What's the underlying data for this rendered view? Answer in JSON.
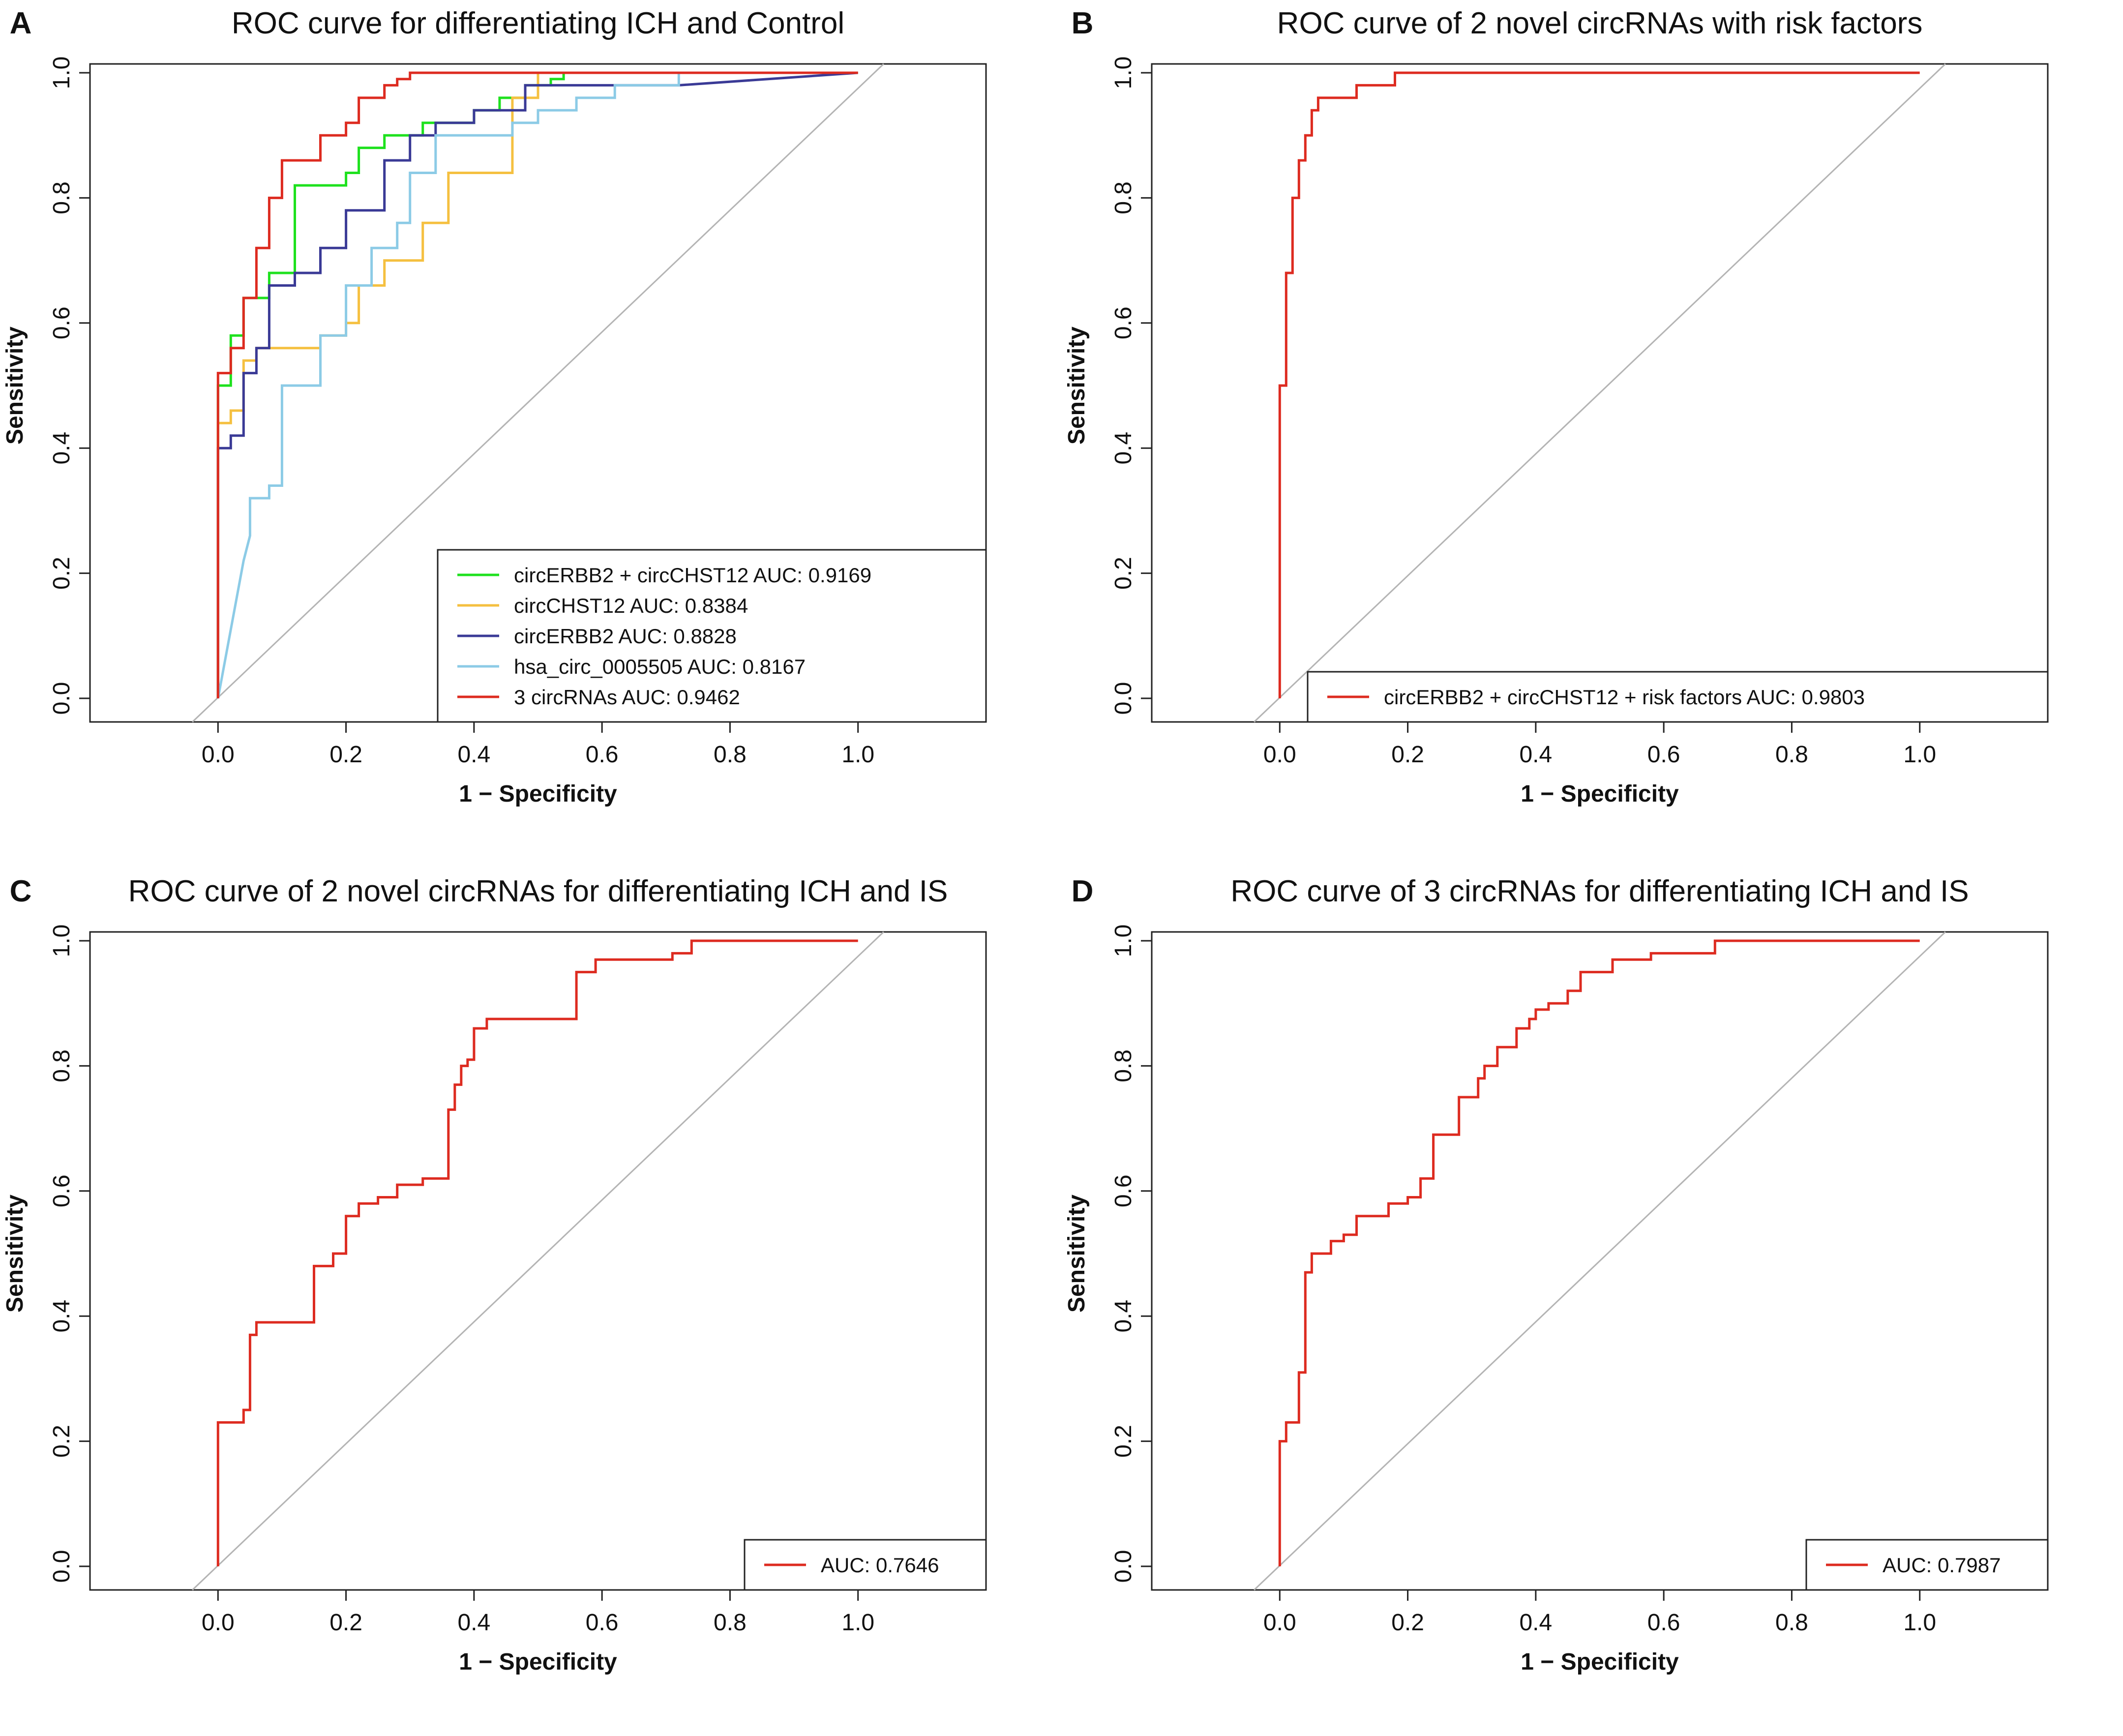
{
  "chart_data": [
    {
      "type": "line",
      "panel_label": "A",
      "title": "ROC curve for differentiating ICH and Control",
      "xlabel": "1 − Specificity",
      "ylabel": "Sensitivity",
      "xlim": [
        -0.2,
        1.2
      ],
      "ylim": [
        0,
        1
      ],
      "xticks": [
        "0.0",
        "0.2",
        "0.4",
        "0.6",
        "0.8",
        "1.0"
      ],
      "yticks": [
        "0.0",
        "0.2",
        "0.4",
        "0.6",
        "0.8",
        "1.0"
      ],
      "legend_position": "bottom-right",
      "diagonal_color": "#b4b4b4",
      "series": [
        {
          "name": "circERBB2 + circCHST12  AUC: 0.9169",
          "color": "#1ee11e",
          "x": [
            0,
            0,
            0.02,
            0.02,
            0.04,
            0.04,
            0.08,
            0.08,
            0.12,
            0.12,
            0.2,
            0.2,
            0.22,
            0.22,
            0.26,
            0.26,
            0.32,
            0.32,
            0.4,
            0.4,
            0.44,
            0.44,
            0.48,
            0.48,
            0.52,
            0.52,
            0.54,
            0.54,
            1.0
          ],
          "y": [
            0,
            0.5,
            0.5,
            0.58,
            0.58,
            0.64,
            0.64,
            0.68,
            0.68,
            0.82,
            0.82,
            0.84,
            0.84,
            0.88,
            0.88,
            0.9,
            0.9,
            0.92,
            0.92,
            0.94,
            0.94,
            0.96,
            0.96,
            0.98,
            0.98,
            0.99,
            0.99,
            1.0,
            1.0
          ]
        },
        {
          "name": "circCHST12  AUC: 0.8384",
          "color": "#f5c040",
          "x": [
            0,
            0,
            0.02,
            0.02,
            0.04,
            0.04,
            0.06,
            0.06,
            0.16,
            0.16,
            0.2,
            0.2,
            0.22,
            0.22,
            0.26,
            0.26,
            0.32,
            0.32,
            0.36,
            0.36,
            0.46,
            0.46,
            0.5,
            0.5,
            1.0
          ],
          "y": [
            0,
            0.44,
            0.44,
            0.46,
            0.46,
            0.54,
            0.54,
            0.56,
            0.56,
            0.58,
            0.58,
            0.6,
            0.6,
            0.66,
            0.66,
            0.7,
            0.7,
            0.76,
            0.76,
            0.84,
            0.84,
            0.96,
            0.96,
            1.0,
            1.0
          ]
        },
        {
          "name": "circERBB2  AUC: 0.8828",
          "color": "#3a3a96",
          "x": [
            0,
            0,
            0.02,
            0.02,
            0.04,
            0.04,
            0.06,
            0.06,
            0.08,
            0.08,
            0.12,
            0.12,
            0.16,
            0.16,
            0.2,
            0.2,
            0.26,
            0.26,
            0.3,
            0.3,
            0.34,
            0.34,
            0.4,
            0.4,
            0.48,
            0.48,
            0.72,
            1.0
          ],
          "y": [
            0,
            0.4,
            0.4,
            0.42,
            0.42,
            0.52,
            0.52,
            0.56,
            0.56,
            0.66,
            0.66,
            0.68,
            0.68,
            0.72,
            0.72,
            0.78,
            0.78,
            0.86,
            0.86,
            0.9,
            0.9,
            0.92,
            0.92,
            0.94,
            0.94,
            0.98,
            0.98,
            1.0
          ]
        },
        {
          "name": "hsa_circ_0005505  AUC: 0.8167",
          "color": "#8ccbe6",
          "x": [
            0,
            0.04,
            0.05,
            0.05,
            0.08,
            0.08,
            0.1,
            0.1,
            0.16,
            0.16,
            0.2,
            0.2,
            0.24,
            0.24,
            0.28,
            0.28,
            0.3,
            0.3,
            0.34,
            0.34,
            0.46,
            0.46,
            0.5,
            0.5,
            0.56,
            0.56,
            0.62,
            0.62,
            0.72,
            0.72,
            1.0
          ],
          "y": [
            0,
            0.22,
            0.26,
            0.32,
            0.32,
            0.34,
            0.34,
            0.5,
            0.5,
            0.58,
            0.58,
            0.66,
            0.66,
            0.72,
            0.72,
            0.76,
            0.76,
            0.84,
            0.84,
            0.9,
            0.9,
            0.92,
            0.92,
            0.94,
            0.94,
            0.96,
            0.96,
            0.98,
            0.98,
            1.0,
            1.0
          ]
        },
        {
          "name": "3 circRNAs  AUC: 0.9462",
          "color": "#dd2b20",
          "x": [
            0,
            0,
            0.02,
            0.02,
            0.04,
            0.04,
            0.06,
            0.06,
            0.08,
            0.08,
            0.1,
            0.1,
            0.16,
            0.16,
            0.2,
            0.2,
            0.22,
            0.22,
            0.26,
            0.26,
            0.28,
            0.28,
            0.3,
            0.3,
            1.0
          ],
          "y": [
            0,
            0.52,
            0.52,
            0.56,
            0.56,
            0.64,
            0.64,
            0.72,
            0.72,
            0.8,
            0.8,
            0.86,
            0.86,
            0.9,
            0.9,
            0.92,
            0.92,
            0.96,
            0.96,
            0.98,
            0.98,
            0.99,
            0.99,
            1.0,
            1.0
          ]
        }
      ]
    },
    {
      "type": "line",
      "panel_label": "B",
      "title": "ROC curve of 2 novel circRNAs with risk factors",
      "xlabel": "1 − Specificity",
      "ylabel": "Sensitivity",
      "xlim": [
        -0.2,
        1.2
      ],
      "ylim": [
        0,
        1
      ],
      "xticks": [
        "0.0",
        "0.2",
        "0.4",
        "0.6",
        "0.8",
        "1.0"
      ],
      "yticks": [
        "0.0",
        "0.2",
        "0.4",
        "0.6",
        "0.8",
        "1.0"
      ],
      "legend_position": "bottom-right",
      "diagonal_color": "#b4b4b4",
      "series": [
        {
          "name": "circERBB2 + circCHST12 + risk factors  AUC: 0.9803",
          "color": "#dd2b20",
          "x": [
            0,
            0,
            0.01,
            0.01,
            0.02,
            0.02,
            0.03,
            0.03,
            0.04,
            0.04,
            0.05,
            0.05,
            0.06,
            0.06,
            0.12,
            0.12,
            0.18,
            0.18,
            1.0
          ],
          "y": [
            0,
            0.5,
            0.5,
            0.68,
            0.68,
            0.8,
            0.8,
            0.86,
            0.86,
            0.9,
            0.9,
            0.94,
            0.94,
            0.96,
            0.96,
            0.98,
            0.98,
            1.0,
            1.0
          ]
        }
      ]
    },
    {
      "type": "line",
      "panel_label": "C",
      "title": "ROC curve of 2 novel circRNAs for differentiating ICH and IS",
      "xlabel": "1 − Specificity",
      "ylabel": "Sensitivity",
      "xlim": [
        -0.2,
        1.2
      ],
      "ylim": [
        0,
        1
      ],
      "xticks": [
        "0.0",
        "0.2",
        "0.4",
        "0.6",
        "0.8",
        "1.0"
      ],
      "yticks": [
        "0.0",
        "0.2",
        "0.4",
        "0.6",
        "0.8",
        "1.0"
      ],
      "legend_position": "bottom-right",
      "diagonal_color": "#b4b4b4",
      "series": [
        {
          "name": "AUC: 0.7646",
          "color": "#dd2b20",
          "x": [
            0,
            0,
            0.04,
            0.04,
            0.05,
            0.05,
            0.06,
            0.06,
            0.15,
            0.15,
            0.18,
            0.18,
            0.2,
            0.2,
            0.22,
            0.22,
            0.25,
            0.25,
            0.28,
            0.28,
            0.32,
            0.32,
            0.36,
            0.36,
            0.37,
            0.37,
            0.38,
            0.38,
            0.39,
            0.39,
            0.4,
            0.4,
            0.42,
            0.42,
            0.56,
            0.56,
            0.59,
            0.59,
            0.71,
            0.71,
            0.74,
            0.74,
            0.86,
            0.86,
            1.0
          ],
          "y": [
            0,
            0.23,
            0.23,
            0.25,
            0.25,
            0.37,
            0.37,
            0.39,
            0.39,
            0.48,
            0.48,
            0.5,
            0.5,
            0.56,
            0.56,
            0.58,
            0.58,
            0.59,
            0.59,
            0.61,
            0.61,
            0.62,
            0.62,
            0.73,
            0.73,
            0.77,
            0.77,
            0.8,
            0.8,
            0.81,
            0.81,
            0.86,
            0.86,
            0.875,
            0.875,
            0.95,
            0.95,
            0.97,
            0.97,
            0.98,
            0.98,
            1.0,
            1.0,
            1.0,
            1.0
          ]
        }
      ]
    },
    {
      "type": "line",
      "panel_label": "D",
      "title": "ROC curve of 3 circRNAs for differentiating ICH and IS",
      "xlabel": "1 − Specificity",
      "ylabel": "Sensitivity",
      "xlim": [
        -0.2,
        1.2
      ],
      "ylim": [
        0,
        1
      ],
      "xticks": [
        "0.0",
        "0.2",
        "0.4",
        "0.6",
        "0.8",
        "1.0"
      ],
      "yticks": [
        "0.0",
        "0.2",
        "0.4",
        "0.6",
        "0.8",
        "1.0"
      ],
      "legend_position": "bottom-right",
      "diagonal_color": "#b4b4b4",
      "series": [
        {
          "name": "AUC: 0.7987",
          "color": "#dd2b20",
          "x": [
            0,
            0,
            0.01,
            0.01,
            0.03,
            0.03,
            0.04,
            0.04,
            0.05,
            0.05,
            0.08,
            0.08,
            0.1,
            0.1,
            0.12,
            0.12,
            0.17,
            0.17,
            0.2,
            0.2,
            0.22,
            0.22,
            0.24,
            0.24,
            0.28,
            0.28,
            0.31,
            0.31,
            0.32,
            0.32,
            0.34,
            0.34,
            0.37,
            0.37,
            0.39,
            0.39,
            0.4,
            0.4,
            0.42,
            0.42,
            0.45,
            0.45,
            0.47,
            0.47,
            0.52,
            0.52,
            0.58,
            0.58,
            0.68,
            0.68,
            0.81,
            0.81,
            0.88,
            0.88,
            1.0
          ],
          "y": [
            0,
            0.2,
            0.2,
            0.23,
            0.23,
            0.31,
            0.31,
            0.47,
            0.47,
            0.5,
            0.5,
            0.52,
            0.52,
            0.53,
            0.53,
            0.56,
            0.56,
            0.58,
            0.58,
            0.59,
            0.59,
            0.62,
            0.62,
            0.69,
            0.69,
            0.75,
            0.75,
            0.78,
            0.78,
            0.8,
            0.8,
            0.83,
            0.83,
            0.86,
            0.86,
            0.875,
            0.875,
            0.89,
            0.89,
            0.9,
            0.9,
            0.92,
            0.92,
            0.95,
            0.95,
            0.97,
            0.97,
            0.98,
            0.98,
            1.0,
            1.0,
            1.0,
            1.0,
            1.0,
            1.0
          ]
        }
      ]
    }
  ]
}
